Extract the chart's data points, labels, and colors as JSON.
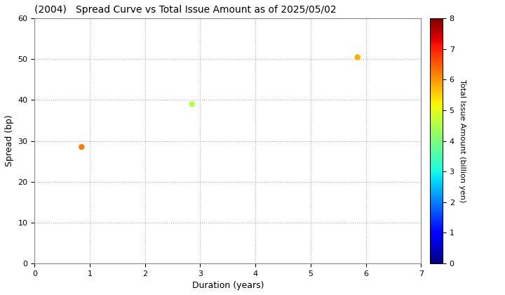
{
  "title": "(2004)   Spread Curve vs Total Issue Amount as of 2025/05/02",
  "xlabel": "Duration (years)",
  "ylabel": "Spread (bp)",
  "colorbar_label": "Total Issue Amount (billion yen)",
  "xlim": [
    0,
    7
  ],
  "ylim": [
    0,
    60
  ],
  "xticks": [
    0,
    1,
    2,
    3,
    4,
    5,
    6,
    7
  ],
  "yticks": [
    0,
    10,
    20,
    30,
    40,
    50,
    60
  ],
  "colorbar_min": 0,
  "colorbar_max": 8,
  "points": [
    {
      "duration": 0.85,
      "spread": 28.5,
      "amount": 6.2
    },
    {
      "duration": 2.85,
      "spread": 39.0,
      "amount": 4.5
    },
    {
      "duration": 5.85,
      "spread": 50.5,
      "amount": 5.8
    }
  ],
  "marker_size": 25,
  "background_color": "#ffffff",
  "grid_color": "#aaaaaa",
  "grid_linestyle": ":"
}
